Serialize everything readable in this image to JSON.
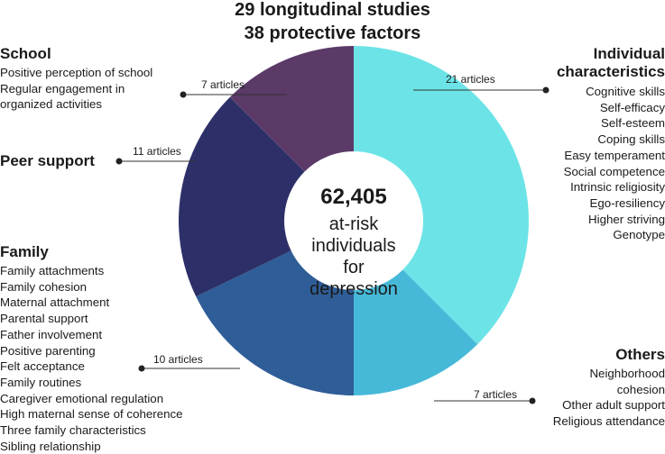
{
  "header": {
    "line1": "29 longitudinal studies",
    "line2": "38 protective factors"
  },
  "center": {
    "number": "62,405",
    "label_lines": [
      "at-risk",
      "individuals",
      "for",
      "depression"
    ]
  },
  "categories": {
    "school": {
      "title": "School",
      "factors": [
        "Positive perception of school",
        "Regular engagement in",
        "organized activities"
      ],
      "count_label": "7 articles",
      "color": "#5b3a68"
    },
    "peer": {
      "title": "Peer support",
      "factors": [],
      "count_label": "11 articles",
      "color": "#2d3068"
    },
    "family": {
      "title": "Family",
      "factors": [
        "Family attachments",
        "Family cohesion",
        "Maternal attachment",
        "Parental support",
        "Father involvement",
        "Positive parenting",
        "Felt acceptance",
        "Family routines",
        "Caregiver emotional regulation",
        "High maternal sense of coherence",
        "Three family characteristics",
        "Sibling relationship"
      ],
      "count_label": "10 articles",
      "color": "#2f5d97"
    },
    "individual": {
      "title_lines": [
        "Individual",
        "characteristics"
      ],
      "factors": [
        "Cognitive skills",
        "Self-efficacy",
        "Self-esteem",
        "Coping skills",
        "Easy temperament",
        "Social competence",
        "Intrinsic religiosity",
        "Ego-resiliency",
        "Higher striving",
        "Genotype"
      ],
      "count_label": "21 articles",
      "color": "#6ce4e7"
    },
    "others": {
      "title": "Others",
      "factors": [
        "Neighborhood",
        "cohesion",
        "Other adult support",
        "Religious attendance"
      ],
      "count_label": "7 articles",
      "color": "#47b9d8"
    }
  },
  "chart_data": {
    "type": "pie",
    "variant": "donut",
    "title": "29 longitudinal studies / 38 protective factors",
    "center_label": "62,405 at-risk individuals for depression",
    "unit": "articles",
    "order": "clockwise from top",
    "slices": [
      {
        "key": "individual",
        "label": "Individual characteristics",
        "value": 21,
        "color": "#6ce4e7"
      },
      {
        "key": "others",
        "label": "Others",
        "value": 7,
        "color": "#47b9d8"
      },
      {
        "key": "family",
        "label": "Family",
        "value": 10,
        "color": "#2f5d97"
      },
      {
        "key": "peer",
        "label": "Peer support",
        "value": 11,
        "color": "#2d3068"
      },
      {
        "key": "school",
        "label": "School",
        "value": 7,
        "color": "#5b3a68"
      }
    ]
  }
}
